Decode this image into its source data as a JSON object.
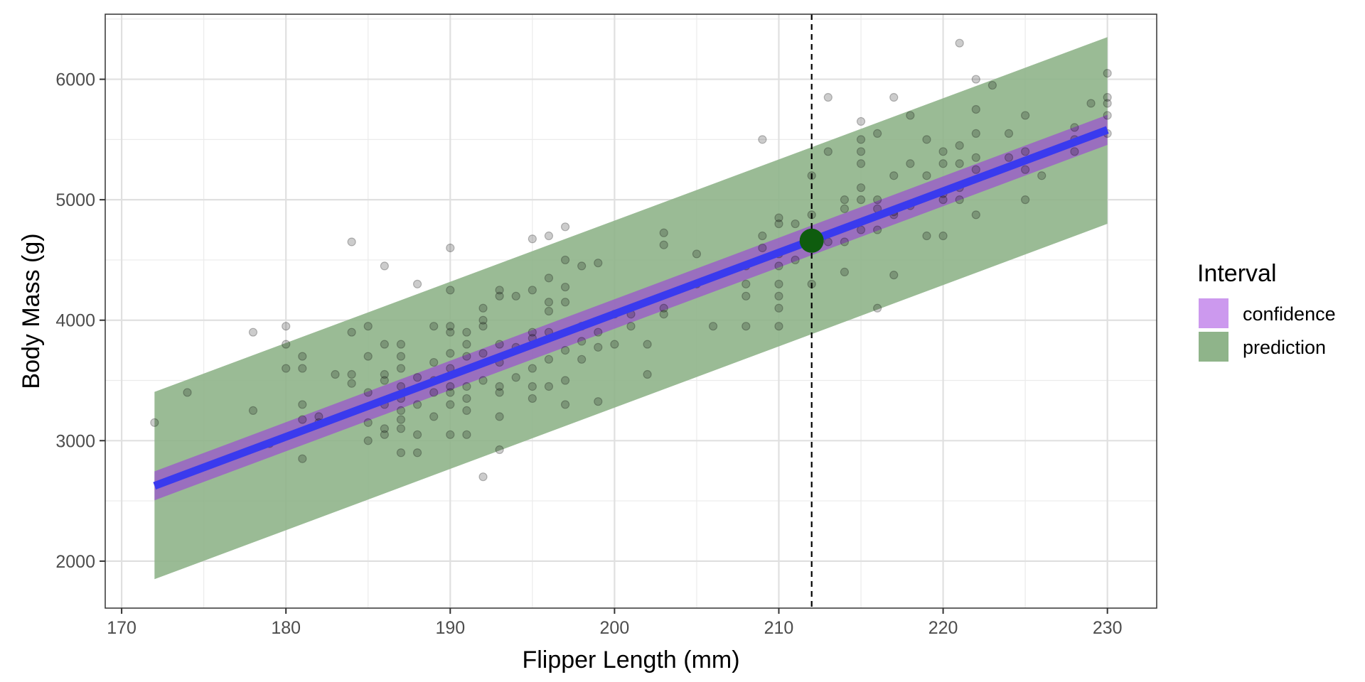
{
  "chart_data": {
    "type": "scatter",
    "title": "",
    "xlabel": "Flipper Length (mm)",
    "ylabel": "Body Mass (g)",
    "xlim": [
      169,
      233
    ],
    "ylim": [
      1610,
      6540
    ],
    "x_ticks": [
      170,
      180,
      190,
      200,
      210,
      220,
      230
    ],
    "y_ticks": [
      2000,
      3000,
      4000,
      5000,
      6000
    ],
    "grid": true,
    "fit_line": {
      "x": [
        172,
        230
      ],
      "y": [
        2625,
        5580
      ],
      "color": "#3a3aee"
    },
    "confidence_band": {
      "x": [
        172,
        230
      ],
      "lower": [
        2505,
        5455
      ],
      "upper": [
        2745,
        5705
      ],
      "color": "#cc99ee"
    },
    "prediction_band": {
      "x": [
        172,
        230
      ],
      "lower": [
        1850,
        4800
      ],
      "upper": [
        3405,
        6350
      ],
      "color": "#8fb48a"
    },
    "highlight_point": {
      "x": 212,
      "y": 4660,
      "color": "#0e5c0e"
    },
    "reference_line_x": 212,
    "legend": {
      "title": "Interval",
      "position": "right",
      "entries": [
        {
          "label": "confidence",
          "color": "#cc99ee"
        },
        {
          "label": "prediction",
          "color": "#8fb48a"
        }
      ]
    },
    "points": [
      [
        172,
        3150
      ],
      [
        174,
        3400
      ],
      [
        178,
        3900
      ],
      [
        178,
        3250
      ],
      [
        179,
        2975
      ],
      [
        180,
        3950
      ],
      [
        180,
        3800
      ],
      [
        180,
        3600
      ],
      [
        181,
        3700
      ],
      [
        181,
        3600
      ],
      [
        181,
        3300
      ],
      [
        181,
        3175
      ],
      [
        181,
        2850
      ],
      [
        182,
        3200
      ],
      [
        182,
        3150
      ],
      [
        183,
        3550
      ],
      [
        184,
        4650
      ],
      [
        184,
        3900
      ],
      [
        184,
        3550
      ],
      [
        184,
        3475
      ],
      [
        185,
        3950
      ],
      [
        185,
        3700
      ],
      [
        185,
        3400
      ],
      [
        185,
        3150
      ],
      [
        185,
        3000
      ],
      [
        186,
        4450
      ],
      [
        186,
        3800
      ],
      [
        186,
        3550
      ],
      [
        186,
        3500
      ],
      [
        186,
        3300
      ],
      [
        186,
        3100
      ],
      [
        186,
        3050
      ],
      [
        187,
        3800
      ],
      [
        187,
        3700
      ],
      [
        187,
        3600
      ],
      [
        187,
        3450
      ],
      [
        187,
        3350
      ],
      [
        187,
        3250
      ],
      [
        187,
        3175
      ],
      [
        187,
        3100
      ],
      [
        187,
        2900
      ],
      [
        188,
        4300
      ],
      [
        188,
        3525
      ],
      [
        188,
        3300
      ],
      [
        188,
        3050
      ],
      [
        188,
        2900
      ],
      [
        189,
        3950
      ],
      [
        189,
        3650
      ],
      [
        189,
        3500
      ],
      [
        189,
        3400
      ],
      [
        189,
        3200
      ],
      [
        190,
        4600
      ],
      [
        190,
        4250
      ],
      [
        190,
        3950
      ],
      [
        190,
        3900
      ],
      [
        190,
        3725
      ],
      [
        190,
        3600
      ],
      [
        190,
        3450
      ],
      [
        190,
        3400
      ],
      [
        190,
        3300
      ],
      [
        190,
        3050
      ],
      [
        191,
        3900
      ],
      [
        191,
        3800
      ],
      [
        191,
        3700
      ],
      [
        191,
        3450
      ],
      [
        191,
        3350
      ],
      [
        191,
        3250
      ],
      [
        191,
        3050
      ],
      [
        192,
        4100
      ],
      [
        192,
        4000
      ],
      [
        192,
        3950
      ],
      [
        192,
        3725
      ],
      [
        192,
        3500
      ],
      [
        192,
        2700
      ],
      [
        193,
        4250
      ],
      [
        193,
        4200
      ],
      [
        193,
        3800
      ],
      [
        193,
        3650
      ],
      [
        193,
        3450
      ],
      [
        193,
        3400
      ],
      [
        193,
        3200
      ],
      [
        193,
        2925
      ],
      [
        194,
        4200
      ],
      [
        194,
        3775
      ],
      [
        194,
        3525
      ],
      [
        195,
        4675
      ],
      [
        195,
        4250
      ],
      [
        195,
        3900
      ],
      [
        195,
        3850
      ],
      [
        195,
        3600
      ],
      [
        195,
        3450
      ],
      [
        195,
        3350
      ],
      [
        196,
        4700
      ],
      [
        196,
        4350
      ],
      [
        196,
        4150
      ],
      [
        196,
        4075
      ],
      [
        196,
        3900
      ],
      [
        196,
        3675
      ],
      [
        196,
        3450
      ],
      [
        197,
        4775
      ],
      [
        197,
        4500
      ],
      [
        197,
        4275
      ],
      [
        197,
        4150
      ],
      [
        197,
        3750
      ],
      [
        197,
        3500
      ],
      [
        197,
        3300
      ],
      [
        198,
        4450
      ],
      [
        198,
        3950
      ],
      [
        198,
        3825
      ],
      [
        198,
        3675
      ],
      [
        199,
        4475
      ],
      [
        199,
        3900
      ],
      [
        199,
        3775
      ],
      [
        199,
        3325
      ],
      [
        200,
        4050
      ],
      [
        200,
        3800
      ],
      [
        201,
        4050
      ],
      [
        201,
        3950
      ],
      [
        202,
        3800
      ],
      [
        202,
        3550
      ],
      [
        203,
        4725
      ],
      [
        203,
        4625
      ],
      [
        203,
        4100
      ],
      [
        203,
        4050
      ],
      [
        205,
        4550
      ],
      [
        205,
        4300
      ],
      [
        206,
        3950
      ],
      [
        208,
        4450
      ],
      [
        208,
        4300
      ],
      [
        208,
        4200
      ],
      [
        208,
        3950
      ],
      [
        209,
        5500
      ],
      [
        209,
        4700
      ],
      [
        209,
        4600
      ],
      [
        210,
        4850
      ],
      [
        210,
        4800
      ],
      [
        210,
        4550
      ],
      [
        210,
        4450
      ],
      [
        210,
        4300
      ],
      [
        210,
        4200
      ],
      [
        210,
        4100
      ],
      [
        210,
        3950
      ],
      [
        211,
        4800
      ],
      [
        211,
        4500
      ],
      [
        212,
        5200
      ],
      [
        212,
        4875
      ],
      [
        212,
        4300
      ],
      [
        213,
        5850
      ],
      [
        213,
        5400
      ],
      [
        213,
        4650
      ],
      [
        214,
        5000
      ],
      [
        214,
        4925
      ],
      [
        214,
        4650
      ],
      [
        214,
        4400
      ],
      [
        215,
        5650
      ],
      [
        215,
        5500
      ],
      [
        215,
        5400
      ],
      [
        215,
        5300
      ],
      [
        215,
        5100
      ],
      [
        215,
        5000
      ],
      [
        215,
        4750
      ],
      [
        216,
        5550
      ],
      [
        216,
        5000
      ],
      [
        216,
        4925
      ],
      [
        216,
        4750
      ],
      [
        216,
        4100
      ],
      [
        217,
        5850
      ],
      [
        217,
        5200
      ],
      [
        217,
        4900
      ],
      [
        217,
        4875
      ],
      [
        217,
        4375
      ],
      [
        218,
        5700
      ],
      [
        218,
        5300
      ],
      [
        218,
        4950
      ],
      [
        219,
        5500
      ],
      [
        219,
        5200
      ],
      [
        219,
        4700
      ],
      [
        220,
        5400
      ],
      [
        220,
        5300
      ],
      [
        220,
        5050
      ],
      [
        220,
        5000
      ],
      [
        220,
        4700
      ],
      [
        221,
        6300
      ],
      [
        221,
        5450
      ],
      [
        221,
        5300
      ],
      [
        221,
        5100
      ],
      [
        221,
        5000
      ],
      [
        222,
        6000
      ],
      [
        222,
        5750
      ],
      [
        222,
        5550
      ],
      [
        222,
        5350
      ],
      [
        222,
        5250
      ],
      [
        222,
        4875
      ],
      [
        223,
        5950
      ],
      [
        224,
        5550
      ],
      [
        224,
        5350
      ],
      [
        225,
        5700
      ],
      [
        225,
        5400
      ],
      [
        225,
        5250
      ],
      [
        225,
        5000
      ],
      [
        226,
        5200
      ],
      [
        228,
        5600
      ],
      [
        228,
        5500
      ],
      [
        228,
        5400
      ],
      [
        229,
        5800
      ],
      [
        230,
        6050
      ],
      [
        230,
        5850
      ],
      [
        230,
        5800
      ],
      [
        230,
        5700
      ],
      [
        230,
        5550
      ]
    ]
  }
}
